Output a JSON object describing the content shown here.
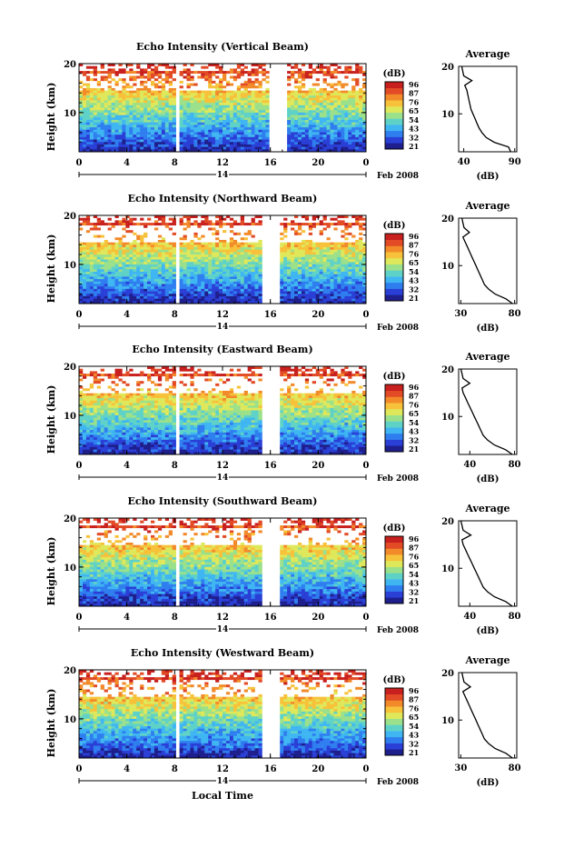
{
  "figure": {
    "xlabel": "Local Time",
    "date_label": "Feb 2008",
    "day_label": "14",
    "colorbar_unit": "(dB)",
    "colorbar_ticks": [
      "96",
      "87",
      "76",
      "65",
      "54",
      "43",
      "32",
      "21"
    ],
    "colormap": [
      "#1e1e8c",
      "#2a3fd6",
      "#2f7ef0",
      "#3fb6f2",
      "#5fd2c8",
      "#9be08a",
      "#dfe85a",
      "#f7c23a",
      "#f28a2a",
      "#e24b26",
      "#c8201e"
    ]
  },
  "chart_data": [
    {
      "type": "heatmap",
      "title": "Echo Intensity (Vertical Beam)",
      "ylabel": "Height (km)",
      "x_ticks": [
        "0",
        "4",
        "8",
        "12",
        "16",
        "20",
        "0"
      ],
      "y_ticks": [
        "20",
        "10"
      ],
      "xlim": [
        0,
        24
      ],
      "ylim": [
        2,
        20
      ],
      "data_gaps_hours": [
        [
          8,
          8.5
        ],
        [
          15.8,
          17.3
        ]
      ],
      "colorbar": {
        "min": 21,
        "max": 96
      },
      "profile": {
        "title": "Average",
        "xlabel": "(dB)",
        "x_ticks": [
          "40",
          "90"
        ],
        "y_ticks": [
          "20",
          "10"
        ],
        "xlim": [
          35,
          92
        ],
        "height_km": [
          2,
          3,
          4,
          5,
          6,
          7,
          8,
          9,
          10,
          11,
          12,
          13,
          14,
          15,
          16,
          17,
          18,
          19,
          20
        ],
        "avg_db": [
          86,
          84,
          70,
          62,
          58,
          55,
          53,
          51,
          49,
          47,
          46,
          45,
          44,
          43,
          41,
          48,
          40,
          39,
          38
        ]
      }
    },
    {
      "type": "heatmap",
      "title": "Echo Intensity (Northward Beam)",
      "ylabel": "Height (km)",
      "x_ticks": [
        "0",
        "4",
        "8",
        "12",
        "16",
        "20",
        "0"
      ],
      "y_ticks": [
        "20",
        "10"
      ],
      "xlim": [
        0,
        24
      ],
      "ylim": [
        2,
        20
      ],
      "data_gaps_hours": [
        [
          8,
          8.5
        ],
        [
          15.2,
          16.8
        ]
      ],
      "colorbar": {
        "min": 21,
        "max": 96
      },
      "profile": {
        "title": "Average",
        "xlabel": "(dB)",
        "x_ticks": [
          "30",
          "80"
        ],
        "y_ticks": [
          "20",
          "10"
        ],
        "xlim": [
          28,
          82
        ],
        "height_km": [
          2,
          3,
          4,
          5,
          6,
          7,
          8,
          9,
          10,
          11,
          12,
          13,
          14,
          15,
          16,
          17,
          18,
          19,
          20
        ],
        "avg_db": [
          78,
          72,
          62,
          56,
          52,
          50,
          48,
          46,
          44,
          42,
          40,
          38,
          36,
          34,
          32,
          38,
          33,
          32,
          31
        ]
      }
    },
    {
      "type": "heatmap",
      "title": "Echo Intensity (Eastward Beam)",
      "ylabel": "Height (km)",
      "x_ticks": [
        "0",
        "4",
        "8",
        "12",
        "16",
        "20",
        "0"
      ],
      "y_ticks": [
        "20",
        "10"
      ],
      "xlim": [
        0,
        24
      ],
      "ylim": [
        2,
        20
      ],
      "data_gaps_hours": [
        [
          8,
          8.5
        ],
        [
          15.2,
          16.8
        ]
      ],
      "colorbar": {
        "min": 21,
        "max": 96
      },
      "profile": {
        "title": "Average",
        "xlabel": "(dB)",
        "x_ticks": [
          "40",
          "80"
        ],
        "y_ticks": [
          "20",
          "10"
        ],
        "xlim": [
          30,
          82
        ],
        "height_km": [
          2,
          3,
          4,
          5,
          6,
          7,
          8,
          9,
          10,
          11,
          12,
          13,
          14,
          15,
          16,
          17,
          18,
          19,
          20
        ],
        "avg_db": [
          78,
          72,
          62,
          56,
          52,
          50,
          48,
          46,
          44,
          42,
          40,
          38,
          36,
          34,
          33,
          40,
          34,
          33,
          32
        ]
      }
    },
    {
      "type": "heatmap",
      "title": "Echo Intensity (Southward Beam)",
      "ylabel": "Height (km)",
      "x_ticks": [
        "0",
        "4",
        "8",
        "12",
        "16",
        "20",
        "0"
      ],
      "y_ticks": [
        "20",
        "10"
      ],
      "xlim": [
        0,
        24
      ],
      "ylim": [
        2,
        20
      ],
      "data_gaps_hours": [
        [
          8,
          8.5
        ],
        [
          15.2,
          16.8
        ]
      ],
      "colorbar": {
        "min": 21,
        "max": 96
      },
      "profile": {
        "title": "Average",
        "xlabel": "(dB)",
        "x_ticks": [
          "40",
          "80"
        ],
        "y_ticks": [
          "20",
          "10"
        ],
        "xlim": [
          30,
          82
        ],
        "height_km": [
          2,
          3,
          4,
          5,
          6,
          7,
          8,
          9,
          10,
          11,
          12,
          13,
          14,
          15,
          16,
          17,
          18,
          19,
          20
        ],
        "avg_db": [
          78,
          72,
          62,
          56,
          52,
          50,
          48,
          46,
          44,
          42,
          40,
          38,
          36,
          34,
          33,
          41,
          34,
          33,
          32
        ]
      }
    },
    {
      "type": "heatmap",
      "title": "Echo Intensity (Westward Beam)",
      "ylabel": "Height (km)",
      "x_ticks": [
        "0",
        "4",
        "8",
        "12",
        "16",
        "20",
        "0"
      ],
      "y_ticks": [
        "20",
        "10"
      ],
      "xlim": [
        0,
        24
      ],
      "ylim": [
        2,
        20
      ],
      "data_gaps_hours": [
        [
          8,
          8.5
        ],
        [
          15.2,
          16.8
        ]
      ],
      "colorbar": {
        "min": 21,
        "max": 96
      },
      "profile": {
        "title": "Average",
        "xlabel": "(dB)",
        "x_ticks": [
          "30",
          "80"
        ],
        "y_ticks": [
          "20",
          "10"
        ],
        "xlim": [
          28,
          82
        ],
        "height_km": [
          2,
          3,
          4,
          5,
          6,
          7,
          8,
          9,
          10,
          11,
          12,
          13,
          14,
          15,
          16,
          17,
          18,
          19,
          20
        ],
        "avg_db": [
          78,
          72,
          62,
          56,
          52,
          50,
          48,
          46,
          44,
          42,
          40,
          38,
          36,
          34,
          32,
          39,
          33,
          32,
          31
        ]
      }
    }
  ]
}
